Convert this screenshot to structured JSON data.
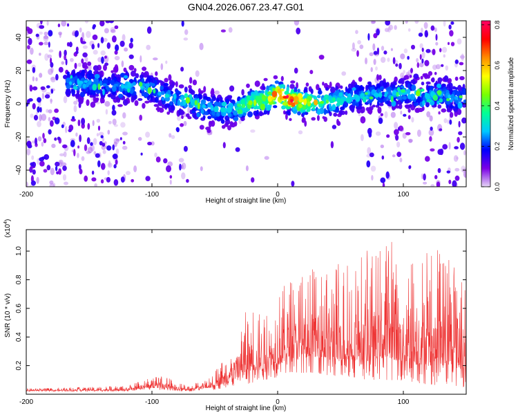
{
  "title": "GN04.2026.067.23.47.G01",
  "chart_data": [
    {
      "type": "heatmap",
      "xlabel": "Height of straight line (km)",
      "ylabel": "Frequency (Hz)",
      "xlim": [
        -200,
        150
      ],
      "ylim": [
        -50,
        50
      ],
      "xticks": [
        -200,
        -100,
        0,
        100
      ],
      "xtick_labels": [
        "-200",
        "-100",
        "0",
        "100"
      ],
      "yticks": [
        -40,
        -20,
        0,
        20,
        40
      ],
      "ytick_labels": [
        "-40",
        "-20",
        "0",
        "20",
        "40"
      ],
      "colorbar": {
        "label": "Normalized spectral amplitude",
        "range": [
          0.0,
          0.82
        ],
        "ticks": [
          0.0,
          0.2,
          0.4,
          0.6,
          0.8
        ],
        "tick_labels": [
          "0.0",
          "0.2",
          "0.4",
          "0.6",
          "0.8"
        ],
        "colors": [
          "#e6d6f5",
          "#7a00e6",
          "#0000ff",
          "#00c8ff",
          "#00ff96",
          "#78ff00",
          "#ffff00",
          "#ff8c00",
          "#ff0000",
          "#ff0064"
        ]
      },
      "ridge": {
        "x": [
          -165,
          -150,
          -140,
          -130,
          -120,
          -110,
          -100,
          -90,
          -80,
          -70,
          -60,
          -50,
          -40,
          -30,
          -20,
          -10,
          0,
          10,
          20,
          30,
          40,
          50,
          60,
          70,
          80,
          90,
          100,
          110,
          120,
          130,
          140,
          150
        ],
        "y": [
          13,
          12,
          11,
          10,
          11,
          10,
          9,
          5,
          3,
          1,
          -2,
          -3,
          -4,
          -2,
          1,
          2,
          6,
          2,
          1,
          0,
          1,
          2,
          4,
          5,
          6,
          5,
          7,
          6,
          5,
          6,
          3,
          4
        ],
        "peak_amplitude": [
          0.3,
          0.28,
          0.25,
          0.25,
          0.28,
          0.3,
          0.28,
          0.3,
          0.3,
          0.3,
          0.3,
          0.3,
          0.3,
          0.35,
          0.5,
          0.5,
          0.75,
          0.8,
          0.55,
          0.5,
          0.42,
          0.35,
          0.3,
          0.3,
          0.3,
          0.28,
          0.3,
          0.3,
          0.28,
          0.3,
          0.28,
          0.28
        ]
      }
    },
    {
      "type": "line",
      "xlabel": "Height of straight line (km)",
      "ylabel": "SNR (10 * v/v)",
      "y_multiplier": "(x10",
      "y_multiplier_exp": "4",
      "y_multiplier_close": ")",
      "xlim": [
        -200,
        150
      ],
      "ylim": [
        0,
        1.15
      ],
      "xticks": [
        -200,
        -100,
        0,
        100
      ],
      "xtick_labels": [
        "-200",
        "-100",
        "0",
        "100"
      ],
      "yticks": [
        0.2,
        0.4,
        0.6,
        0.8,
        1.0
      ],
      "ytick_labels": [
        "0.2",
        "0.4",
        "0.6",
        "0.8",
        "1.0"
      ],
      "color": "#ee3333",
      "envelope": {
        "x": [
          -200,
          -150,
          -120,
          -110,
          -100,
          -90,
          -80,
          -70,
          -60,
          -50,
          -40,
          -30,
          -20,
          -10,
          0,
          10,
          20,
          30,
          40,
          50,
          60,
          70,
          80,
          90,
          100,
          110,
          120,
          130,
          140,
          150
        ],
        "min": [
          0.02,
          0.02,
          0.02,
          0.03,
          0.03,
          0.03,
          0.02,
          0.02,
          0.03,
          0.03,
          0.05,
          0.06,
          0.08,
          0.1,
          0.12,
          0.15,
          0.15,
          0.15,
          0.13,
          0.12,
          0.12,
          0.1,
          0.1,
          0.1,
          0.08,
          0.07,
          0.07,
          0.06,
          0.05,
          0.05
        ],
        "max": [
          0.04,
          0.05,
          0.06,
          0.09,
          0.12,
          0.13,
          0.08,
          0.06,
          0.1,
          0.16,
          0.3,
          0.52,
          0.65,
          0.6,
          0.7,
          0.82,
          0.85,
          0.88,
          0.9,
          0.92,
          0.95,
          1.0,
          1.04,
          1.1,
          1.0,
          0.98,
          1.0,
          1.02,
          0.95,
          0.85
        ]
      }
    }
  ]
}
